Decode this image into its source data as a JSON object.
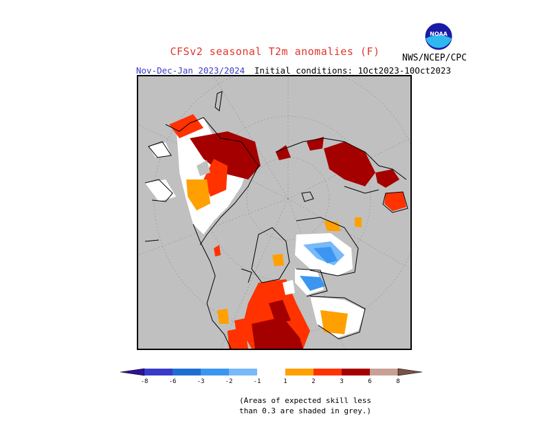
{
  "header": {
    "title": "CFSv2 seasonal T2m anomalies (F)",
    "period": "Nov-Dec-Jan 2023/2024",
    "initial_conditions": "Initial conditions: 1Oct2023-10Oct2023",
    "agency": "NWS/NCEP/CPC",
    "logo_text": "NOAA"
  },
  "colorbar": {
    "tick_labels": [
      "-8",
      "-6",
      "-3",
      "-2",
      "-1",
      "1",
      "2",
      "3",
      "6",
      "8"
    ],
    "colors": {
      "lt_-8": "#30109a",
      "-8_-6": "#3a3ac8",
      "-6_-3": "#1e6ed2",
      "-3_-2": "#3c96ef",
      "-2_-1": "#78b9fa",
      "-1_1": "#ffffff",
      "1_2": "#ffa000",
      "2_3": "#ff3200",
      "3_6": "#a50000",
      "6_8": "#c8a096",
      "gt_8": "#7a5246"
    }
  },
  "map": {
    "projection": "polar stereographic (North Pole)",
    "low_skill_color": "#c0c0c0"
  },
  "footnote": {
    "line1": "(Areas of expected skill less",
    "line2": "than 0.3 are shaded in grey.)"
  }
}
